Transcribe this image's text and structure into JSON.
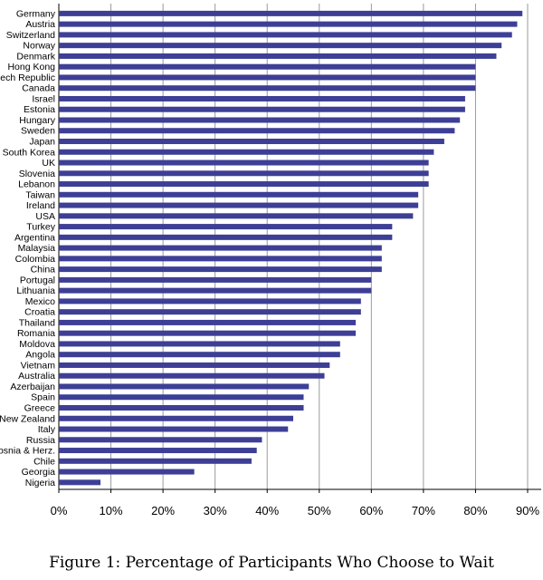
{
  "chart_data": {
    "type": "bar",
    "orientation": "horizontal",
    "title": "",
    "xlabel": "",
    "ylabel": "",
    "xlim": [
      0,
      90
    ],
    "x_tick_values": [
      0,
      10,
      20,
      30,
      40,
      50,
      60,
      70,
      80,
      90
    ],
    "x_tick_labels": [
      "0%",
      "10%",
      "20%",
      "30%",
      "40%",
      "50%",
      "60%",
      "70%",
      "80%",
      "90%"
    ],
    "grid": "vertical",
    "bar_color": "#3d3f96",
    "categories": [
      "Germany",
      "Austria",
      "Switzerland",
      "Norway",
      "Denmark",
      "Hong Kong",
      "Czech Republic",
      "Canada",
      "Israel",
      "Estonia",
      "Hungary",
      "Sweden",
      "Japan",
      "South Korea",
      "UK",
      "Slovenia",
      "Lebanon",
      "Taiwan",
      "Ireland",
      "USA",
      "Turkey",
      "Argentina",
      "Malaysia",
      "Colombia",
      "China",
      "Portugal",
      "Lithuania",
      "Mexico",
      "Croatia",
      "Thailand",
      "Romania",
      "Moldova",
      "Angola",
      "Vietnam",
      "Australia",
      "Azerbaijan",
      "Spain",
      "Greece",
      "New Zealand",
      "Italy",
      "Russia",
      "Bosnia & Herz.",
      "Chile",
      "Georgia",
      "Nigeria"
    ],
    "values": [
      89,
      88,
      87,
      85,
      84,
      80,
      80,
      80,
      78,
      78,
      77,
      76,
      74,
      72,
      71,
      71,
      71,
      69,
      69,
      68,
      64,
      64,
      62,
      62,
      62,
      60,
      60,
      58,
      58,
      57,
      57,
      54,
      54,
      52,
      51,
      48,
      47,
      47,
      45,
      44,
      39,
      38,
      37,
      26,
      8
    ]
  },
  "caption": "Figure 1: Percentage of Participants Who Choose to Wait"
}
